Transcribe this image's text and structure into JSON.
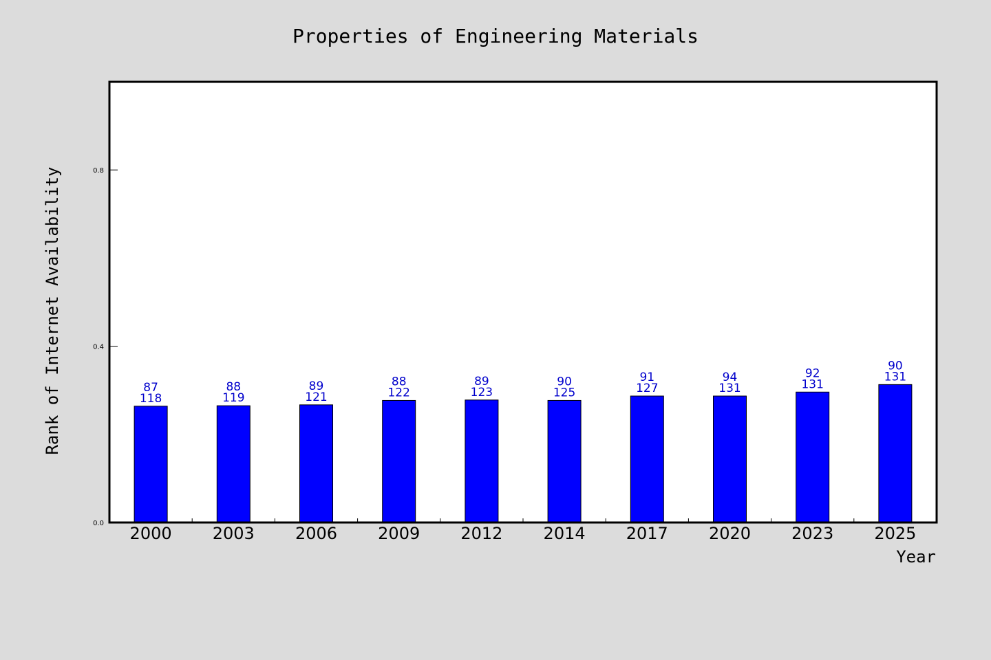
{
  "chart_data": {
    "type": "bar",
    "title": "Properties of Engineering Materials",
    "xlabel": "Year",
    "ylabel": "Rank of Internet Availability",
    "categories": [
      "2000",
      "2003",
      "2006",
      "2009",
      "2012",
      "2014",
      "2017",
      "2020",
      "2023",
      "2025"
    ],
    "values": [
      0.264,
      0.265,
      0.267,
      0.277,
      0.278,
      0.277,
      0.287,
      0.287,
      0.296,
      0.313
    ],
    "labels_top": [
      "87",
      "88",
      "89",
      "88",
      "89",
      "90",
      "91",
      "94",
      "92",
      "90"
    ],
    "labels_bottom": [
      "118",
      "119",
      "121",
      "122",
      "123",
      "125",
      "127",
      "131",
      "131",
      "131"
    ],
    "ylim": [
      0,
      1.0
    ],
    "yticks": [
      0.0,
      0.4,
      0.8
    ],
    "ytick_labels": [
      "0.0",
      "0.4",
      "0.8"
    ],
    "grid": false,
    "colors": {
      "bar": "#0000ff",
      "label": "#0000cc",
      "background": "#dcdcdc",
      "plot_background": "#ffffff"
    }
  }
}
